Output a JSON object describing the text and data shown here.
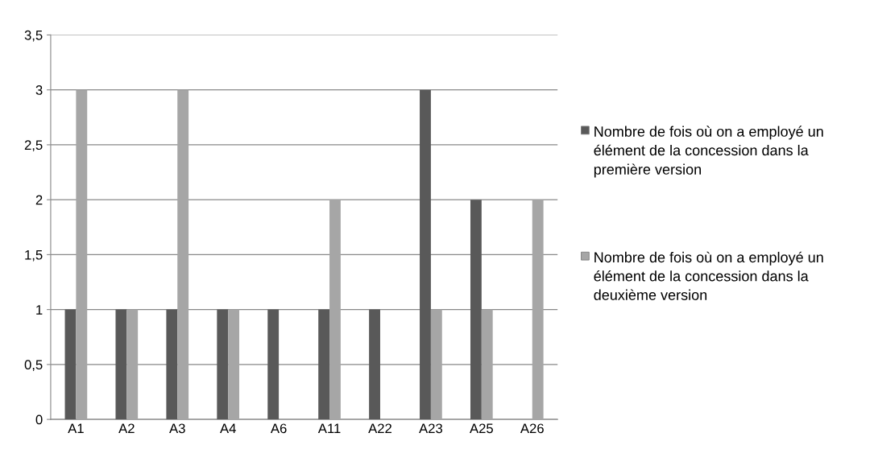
{
  "chart_data": {
    "type": "bar",
    "categories": [
      "A1",
      "A2",
      "A3",
      "A4",
      "A6",
      "A11",
      "A22",
      "A23",
      "A25",
      "A26"
    ],
    "series": [
      {
        "name": "Nombre de fois où on a employé un élément de la concession dans la première version",
        "color": "#595959",
        "values": [
          1,
          1,
          1,
          1,
          1,
          1,
          1,
          3,
          2,
          null
        ]
      },
      {
        "name": "Nombre de fois où on a employé un élément de la concession dans la deuxième version",
        "color": "#a6a6a6",
        "values": [
          3,
          1,
          3,
          1,
          null,
          2,
          null,
          1,
          1,
          2
        ]
      }
    ],
    "ylim": [
      0,
      3.5
    ],
    "yticks": [
      0,
      {
        "value": 0.5,
        "label": "0,5"
      },
      1,
      {
        "value": 1.5,
        "label": "1,5"
      },
      2,
      {
        "value": 2.5,
        "label": "2,5"
      },
      3,
      {
        "value": 3.5,
        "label": "3,5"
      }
    ],
    "grid": "y",
    "legend": "right"
  }
}
